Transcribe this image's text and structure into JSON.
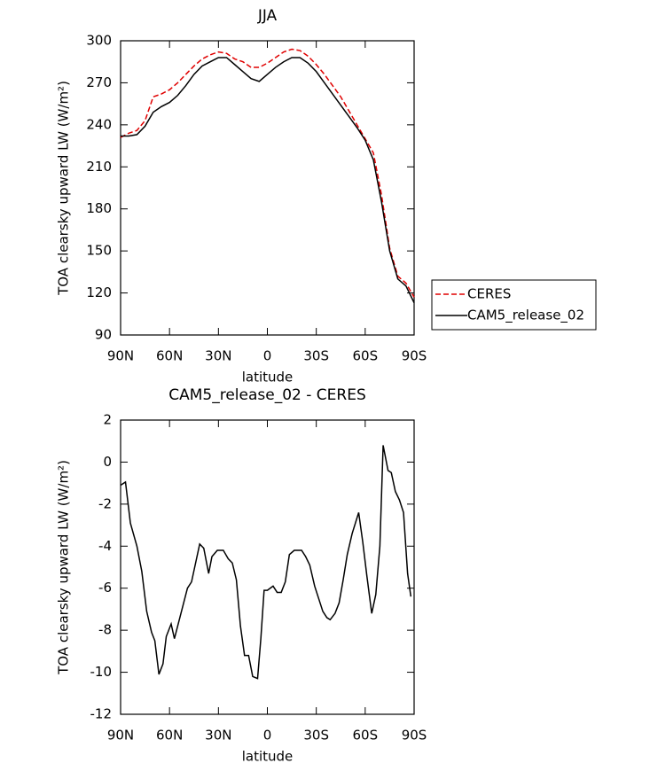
{
  "chart_data": [
    {
      "type": "line",
      "title": "JJA",
      "xlabel": "latitude",
      "ylabel": "TOA clearsky upward LW (W/m²)",
      "xlim": [
        90,
        -90
      ],
      "xticks": [
        {
          "value": 90,
          "label": "90N"
        },
        {
          "value": 60,
          "label": "60N"
        },
        {
          "value": 30,
          "label": "30N"
        },
        0,
        {
          "value": -30,
          "label": "30S"
        },
        {
          "value": -60,
          "label": "60S"
        },
        {
          "value": -90,
          "label": "90S"
        }
      ],
      "ylim": [
        90,
        300
      ],
      "yticks": [
        90,
        120,
        150,
        180,
        210,
        240,
        270,
        300
      ],
      "legend": "right",
      "x": [
        90,
        85,
        80,
        75,
        70,
        65,
        60,
        55,
        50,
        45,
        40,
        35,
        30,
        25,
        20,
        15,
        10,
        5,
        0,
        -5,
        -10,
        -15,
        -20,
        -25,
        -30,
        -35,
        -40,
        -45,
        -50,
        -55,
        -60,
        -65,
        -70,
        -75,
        -80,
        -85,
        -90
      ],
      "series": [
        {
          "name": "CERES",
          "color": "#e00000",
          "line_style": "dashed",
          "values": [
            231,
            234,
            236,
            243,
            260,
            262,
            265,
            270,
            276,
            282,
            287,
            290,
            292,
            291,
            287,
            285,
            281,
            281,
            284,
            288,
            292,
            294,
            293,
            289,
            283,
            276,
            268,
            260,
            250,
            240,
            230,
            220,
            190,
            152,
            132,
            127,
            117
          ]
        },
        {
          "name": "CAM5_release_02",
          "color": "#000000",
          "line_style": "solid",
          "values": [
            232,
            232,
            233,
            239,
            249,
            253,
            256,
            261,
            268,
            276,
            282,
            285,
            288,
            288,
            283,
            278,
            273,
            271,
            276,
            281,
            285,
            288,
            288,
            284,
            278,
            270,
            262,
            254,
            246,
            238,
            229,
            215,
            185,
            150,
            130,
            125,
            113
          ]
        }
      ]
    },
    {
      "type": "line",
      "title": "CAM5_release_02 - CERES",
      "xlabel": "latitude",
      "ylabel": "TOA clearsky upward LW (W/m²)",
      "xlim": [
        90,
        -90
      ],
      "xticks": [
        {
          "value": 90,
          "label": "90N"
        },
        {
          "value": 60,
          "label": "60N"
        },
        {
          "value": 30,
          "label": "30N"
        },
        0,
        {
          "value": -30,
          "label": "30S"
        },
        {
          "value": -60,
          "label": "60S"
        },
        {
          "value": -90,
          "label": "90S"
        }
      ],
      "ylim": [
        -12,
        2
      ],
      "yticks": [
        -12,
        -10,
        -8,
        -6,
        -4,
        -2,
        0,
        2
      ],
      "x": [
        90,
        87,
        84,
        80,
        77,
        74,
        71,
        69,
        66.5,
        64,
        62,
        59,
        57,
        54,
        51,
        49,
        46.5,
        44,
        41.5,
        39,
        36,
        34,
        30.7,
        27,
        24,
        21.5,
        19,
        16.5,
        14,
        11.5,
        9,
        6,
        4,
        2,
        0,
        -3.5,
        -6,
        -8.5,
        -11,
        -13.5,
        -16.5,
        -21,
        -23.5,
        -26,
        -29,
        -31.5,
        -34,
        -36.5,
        -38.5,
        -41.5,
        -44,
        -46.5,
        -49,
        -52,
        -54,
        -56,
        -58.5,
        -61,
        -64,
        -66.5,
        -69,
        -71,
        -74,
        -76,
        -78.5,
        -81,
        -83.5,
        -86,
        -88
      ],
      "series": [
        {
          "name": "CAM5_release_02 - CERES",
          "color": "#000000",
          "line_style": "solid",
          "values": [
            -1.1,
            -0.95,
            -2.9,
            -4,
            -5.2,
            -7.1,
            -8.1,
            -8.5,
            -10.1,
            -9.6,
            -8.3,
            -7.7,
            -8.4,
            -7.5,
            -6.6,
            -6,
            -5.7,
            -4.8,
            -3.9,
            -4.1,
            -5.3,
            -4.5,
            -4.2,
            -4.2,
            -4.6,
            -4.8,
            -5.6,
            -7.8,
            -9.2,
            -9.2,
            -10.2,
            -10.3,
            -8.4,
            -6.1,
            -6.1,
            -5.9,
            -6.2,
            -6.2,
            -5.7,
            -4.4,
            -4.2,
            -4.2,
            -4.5,
            -4.9,
            -5.9,
            -6.5,
            -7.1,
            -7.4,
            -7.5,
            -7.2,
            -6.7,
            -5.6,
            -4.4,
            -3.4,
            -2.9,
            -2.4,
            -3.8,
            -5.4,
            -7.2,
            -6.3,
            -4,
            0.8,
            -0.4,
            -0.5,
            -1.4,
            -1.8,
            -2.4,
            -5.3,
            -6.4
          ]
        }
      ]
    }
  ]
}
